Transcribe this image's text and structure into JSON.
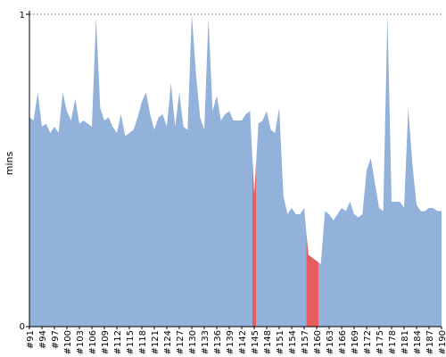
{
  "chart_data": {
    "type": "area",
    "title": "",
    "xlabel": "",
    "ylabel": "mins",
    "ylim": [
      0,
      1
    ],
    "y_ticks": [
      "0",
      "1"
    ],
    "grid": "dashed line at y=1",
    "colors": {
      "normal": "#92b1db",
      "failed": "#e85c5c"
    },
    "x_tick_labels": [
      "#91",
      "#94",
      "#97",
      "#100",
      "#103",
      "#106",
      "#109",
      "#112",
      "#115",
      "#118",
      "#121",
      "#124",
      "#127",
      "#130",
      "#133",
      "#136",
      "#139",
      "#142",
      "#145",
      "#148",
      "#151",
      "#154",
      "#157",
      "#160",
      "#163",
      "#166",
      "#169",
      "#172",
      "#175",
      "#178",
      "#181",
      "#184",
      "#187",
      "#190"
    ],
    "x_start": 91,
    "x_end": 190,
    "values": [
      0.67,
      0.66,
      0.75,
      0.64,
      0.65,
      0.62,
      0.64,
      0.62,
      0.75,
      0.69,
      0.66,
      0.73,
      0.65,
      0.66,
      0.65,
      0.64,
      0.99,
      0.7,
      0.66,
      0.67,
      0.64,
      0.62,
      0.68,
      0.61,
      0.62,
      0.63,
      0.67,
      0.72,
      0.75,
      0.68,
      0.63,
      0.67,
      0.68,
      0.64,
      0.78,
      0.64,
      0.75,
      0.64,
      0.63,
      1.0,
      0.81,
      0.67,
      0.63,
      0.99,
      0.69,
      0.74,
      0.66,
      0.68,
      0.69,
      0.66,
      0.66,
      0.66,
      0.68,
      0.69,
      0.42,
      0.65,
      0.66,
      0.69,
      0.63,
      0.62,
      0.7,
      0.42,
      0.36,
      0.38,
      0.36,
      0.36,
      0.38,
      0.23,
      0.22,
      0.21,
      0.2,
      0.37,
      0.36,
      0.34,
      0.36,
      0.38,
      0.37,
      0.4,
      0.36,
      0.35,
      0.36,
      0.5,
      0.54,
      0.46,
      0.38,
      0.37,
      1.0,
      0.4,
      0.4,
      0.4,
      0.38,
      0.7,
      0.52,
      0.39,
      0.37,
      0.37,
      0.38,
      0.38,
      0.37,
      0.37
    ],
    "failed_builds": [
      145,
      158,
      159,
      160
    ]
  }
}
